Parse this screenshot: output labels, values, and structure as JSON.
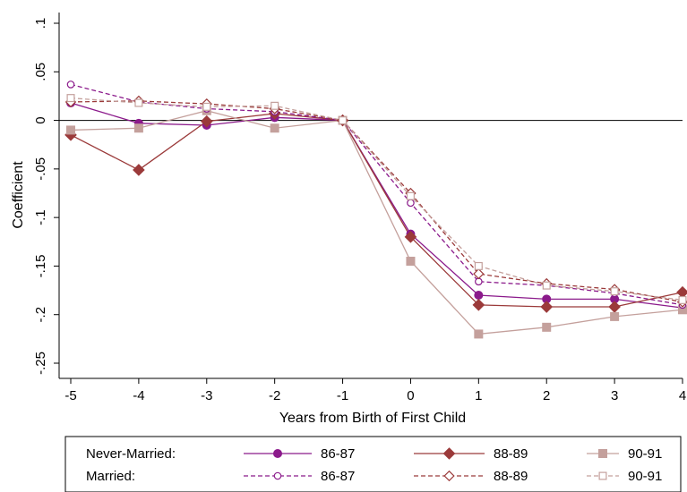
{
  "chart_data": {
    "type": "line",
    "xlabel": "Years from Birth of First Child",
    "ylabel": "Coefficient",
    "x": [
      -5,
      -4,
      -3,
      -2,
      -1,
      0,
      1,
      2,
      3,
      4
    ],
    "x_ticks": [
      "-5",
      "-4",
      "-3",
      "-2",
      "-1",
      "0",
      "1",
      "2",
      "3",
      "4"
    ],
    "y_ticks": [
      {
        "value": 0.1,
        "label": ".1"
      },
      {
        "value": 0.05,
        "label": ".05"
      },
      {
        "value": 0,
        "label": "0"
      },
      {
        "value": -0.05,
        "label": "-.05"
      },
      {
        "value": -0.1,
        "label": "-.1"
      },
      {
        "value": -0.15,
        "label": "-.15"
      },
      {
        "value": -0.2,
        "label": "-.2"
      },
      {
        "value": -0.25,
        "label": "-.25"
      }
    ],
    "xlim": [
      -5,
      4
    ],
    "ylim": [
      -0.25,
      0.1
    ],
    "grid": false,
    "reference_line_y": 0,
    "legend": {
      "placement": "bottom",
      "row_labels": [
        "Never-Married:",
        "Married:"
      ]
    },
    "series": [
      {
        "group": "Never-Married",
        "name": "86-87",
        "color": "#8B1A8B",
        "dash": "solid",
        "marker": "filled-circle",
        "values": [
          0.018,
          -0.003,
          -0.005,
          0.003,
          0.0,
          -0.117,
          -0.18,
          -0.184,
          -0.184,
          -0.193
        ]
      },
      {
        "group": "Never-Married",
        "name": "88-89",
        "color": "#9B3A3A",
        "dash": "solid",
        "marker": "filled-diamond",
        "values": [
          -0.015,
          -0.051,
          -0.001,
          0.007,
          0.0,
          -0.12,
          -0.19,
          -0.192,
          -0.192,
          -0.177
        ]
      },
      {
        "group": "Never-Married",
        "name": "90-91",
        "color": "#C4A09C",
        "dash": "solid",
        "marker": "filled-square",
        "values": [
          -0.01,
          -0.008,
          0.01,
          -0.008,
          0.0,
          -0.145,
          -0.22,
          -0.213,
          -0.202,
          -0.195
        ]
      },
      {
        "group": "Married",
        "name": "86-87",
        "color": "#8B1A8B",
        "dash": "dashed",
        "marker": "hollow-circle",
        "values": [
          0.037,
          0.019,
          0.012,
          0.009,
          0.0,
          -0.085,
          -0.166,
          -0.17,
          -0.178,
          -0.19
        ]
      },
      {
        "group": "Married",
        "name": "88-89",
        "color": "#9B3A3A",
        "dash": "dashed",
        "marker": "hollow-diamond",
        "values": [
          0.019,
          0.02,
          0.017,
          0.012,
          0.0,
          -0.075,
          -0.158,
          -0.168,
          -0.174,
          -0.187
        ]
      },
      {
        "group": "Married",
        "name": "90-91",
        "color": "#C4A09C",
        "dash": "dashed",
        "marker": "hollow-square",
        "values": [
          0.023,
          0.018,
          0.014,
          0.015,
          0.0,
          -0.078,
          -0.15,
          -0.17,
          -0.176,
          -0.185
        ]
      }
    ]
  }
}
